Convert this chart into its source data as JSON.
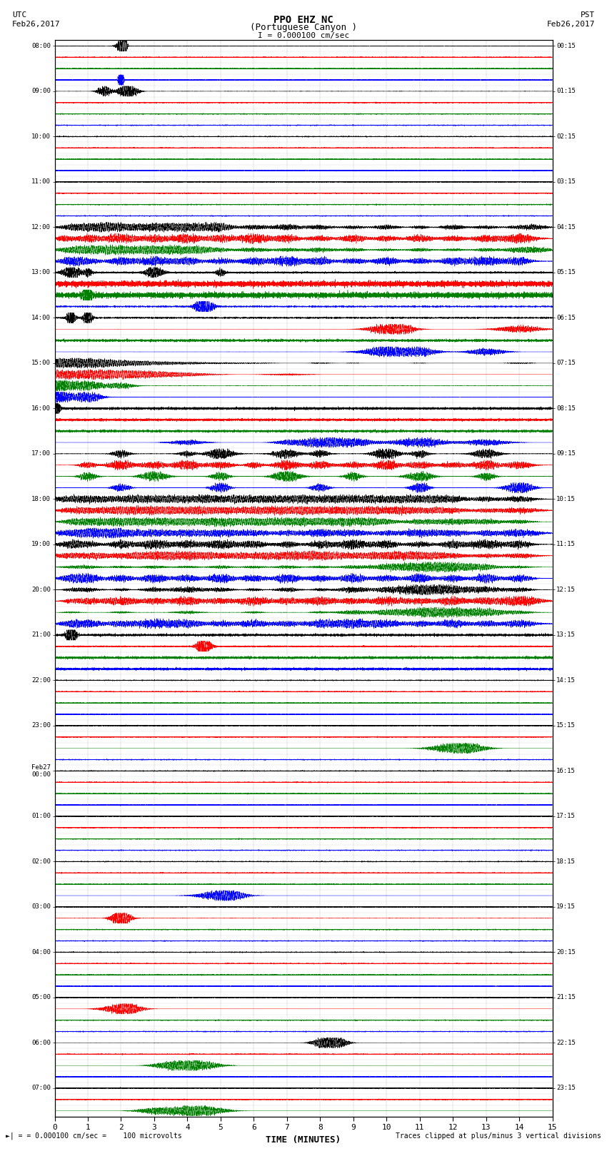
{
  "title_line1": "PPO EHZ NC",
  "title_line2": "(Portuguese Canyon )",
  "scale_label": "I = 0.000100 cm/sec",
  "utc_label": "UTC\nFeb26,2017",
  "pst_label": "PST\nFeb26,2017",
  "xlabel": "TIME (MINUTES)",
  "footer_left": "= 0.000100 cm/sec =    100 microvolts",
  "footer_right": "Traces clipped at plus/minus 3 vertical divisions",
  "xlim": [
    0,
    15
  ],
  "xticks": [
    0,
    1,
    2,
    3,
    4,
    5,
    6,
    7,
    8,
    9,
    10,
    11,
    12,
    13,
    14,
    15
  ],
  "colors_cycle": [
    "black",
    "red",
    "green",
    "blue"
  ],
  "bg_color": "white",
  "left_times": [
    "08:00",
    "",
    "",
    "",
    "09:00",
    "",
    "",
    "",
    "10:00",
    "",
    "",
    "",
    "11:00",
    "",
    "",
    "",
    "12:00",
    "",
    "",
    "",
    "13:00",
    "",
    "",
    "",
    "14:00",
    "",
    "",
    "",
    "15:00",
    "",
    "",
    "",
    "16:00",
    "",
    "",
    "",
    "17:00",
    "",
    "",
    "",
    "18:00",
    "",
    "",
    "",
    "19:00",
    "",
    "",
    "",
    "20:00",
    "",
    "",
    "",
    "21:00",
    "",
    "",
    "",
    "22:00",
    "",
    "",
    "",
    "23:00",
    "",
    "",
    "",
    "Feb27\n00:00",
    "",
    "",
    "",
    "01:00",
    "",
    "",
    "",
    "02:00",
    "",
    "",
    "",
    "03:00",
    "",
    "",
    "",
    "04:00",
    "",
    "",
    "",
    "05:00",
    "",
    "",
    "",
    "06:00",
    "",
    "",
    "",
    "07:00",
    "",
    ""
  ],
  "right_times": [
    "00:15",
    "",
    "",
    "",
    "01:15",
    "",
    "",
    "",
    "02:15",
    "",
    "",
    "",
    "03:15",
    "",
    "",
    "",
    "04:15",
    "",
    "",
    "",
    "05:15",
    "",
    "",
    "",
    "06:15",
    "",
    "",
    "",
    "07:15",
    "",
    "",
    "",
    "08:15",
    "",
    "",
    "",
    "09:15",
    "",
    "",
    "",
    "10:15",
    "",
    "",
    "",
    "11:15",
    "",
    "",
    "",
    "12:15",
    "",
    "",
    "",
    "13:15",
    "",
    "",
    "",
    "14:15",
    "",
    "",
    "",
    "15:15",
    "",
    "",
    "",
    "16:15",
    "",
    "",
    "",
    "17:15",
    "",
    "",
    "",
    "18:15",
    "",
    "",
    "",
    "19:15",
    "",
    "",
    "",
    "20:15",
    "",
    "",
    "",
    "21:15",
    "",
    "",
    "",
    "22:15",
    "",
    "",
    "",
    "23:15",
    "",
    ""
  ]
}
